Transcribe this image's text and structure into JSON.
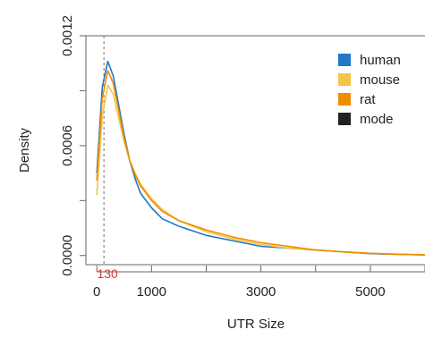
{
  "chart_data": {
    "type": "line",
    "title": "",
    "xlabel": "UTR Size",
    "ylabel": "Density",
    "xlim": [
      -200,
      6000
    ],
    "ylim": [
      -5e-05,
      0.0012
    ],
    "x_ticks": [
      0,
      1000,
      2000,
      3000,
      4000,
      5000,
      6000
    ],
    "x_tick_labels": [
      "0",
      "1000",
      "3000",
      "5000"
    ],
    "x_tick_label_values": [
      0,
      1000,
      3000,
      5000
    ],
    "y_ticks": [
      0.0,
      0.0003,
      0.0006,
      0.0009,
      0.0012
    ],
    "y_tick_labels": [
      "0.0000",
      "0.0006",
      "0.0012"
    ],
    "y_tick_label_values": [
      0.0,
      0.0006,
      0.0012
    ],
    "grid": false,
    "legend_position": "top-right",
    "legend": [
      {
        "label": "human",
        "color": "#1f78c8"
      },
      {
        "label": "mouse",
        "color": "#f5c443"
      },
      {
        "label": "rat",
        "color": "#f08c00"
      },
      {
        "label": "mode",
        "color": "#222222"
      }
    ],
    "mode": {
      "value": 130,
      "label": "130",
      "color": "#e8341c"
    },
    "series": [
      {
        "name": "human",
        "color": "#1f78c8",
        "x": [
          0,
          100,
          200,
          300,
          400,
          500,
          600,
          700,
          800,
          1000,
          1200,
          1500,
          2000,
          2500,
          3000,
          3500,
          4000,
          4500,
          5000,
          5500,
          6000
        ],
        "y": [
          0.00045,
          0.00092,
          0.00106,
          0.00098,
          0.00082,
          0.00066,
          0.00052,
          0.00042,
          0.00034,
          0.00026,
          0.0002,
          0.00016,
          0.00011,
          8e-05,
          5e-05,
          4e-05,
          3e-05,
          2e-05,
          1e-05,
          6e-06,
          3e-06
        ]
      },
      {
        "name": "mouse",
        "color": "#f5c443",
        "x": [
          0,
          100,
          200,
          300,
          400,
          500,
          600,
          700,
          800,
          1000,
          1200,
          1500,
          2000,
          2500,
          3000,
          3500,
          4000,
          4500,
          5000,
          5500,
          6000
        ],
        "y": [
          0.00033,
          0.00076,
          0.00093,
          0.00088,
          0.00075,
          0.00062,
          0.00052,
          0.00045,
          0.00039,
          0.00031,
          0.00025,
          0.00019,
          0.00013,
          9e-05,
          6e-05,
          4e-05,
          3e-05,
          2e-05,
          1.2e-05,
          7e-06,
          4e-06
        ]
      },
      {
        "name": "rat",
        "color": "#f08c00",
        "x": [
          0,
          100,
          200,
          300,
          400,
          500,
          600,
          700,
          800,
          1000,
          1200,
          1500,
          2000,
          2500,
          3000,
          3500,
          4000,
          4500,
          5000,
          5500,
          6000
        ],
        "y": [
          0.00041,
          0.00086,
          0.00101,
          0.00094,
          0.00079,
          0.00064,
          0.00052,
          0.00044,
          0.00038,
          0.0003,
          0.00024,
          0.00019,
          0.00014,
          0.0001,
          7e-05,
          5e-05,
          3e-05,
          2e-05,
          1.2e-05,
          7e-06,
          4e-06
        ]
      }
    ]
  }
}
